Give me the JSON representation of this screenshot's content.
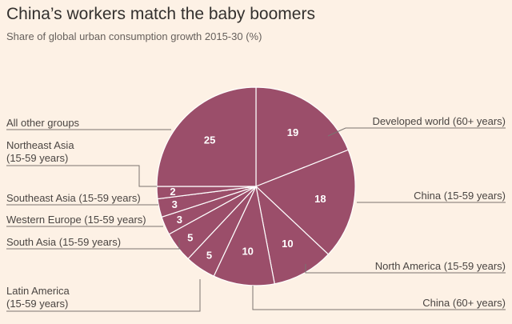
{
  "header": {
    "title": "China’s workers match the baby boomers",
    "subtitle": "Share of global urban consumption growth 2015-30 (%)"
  },
  "colors": {
    "slice": "#9b4e6a",
    "divider": "#ffffff",
    "background": "#fdf1e5"
  },
  "chart_data": {
    "type": "pie",
    "title": "China’s workers match the baby boomers",
    "subtitle": "Share of global urban consumption growth 2015-30 (%)",
    "unit": "%",
    "slices": [
      {
        "label": [
          "Developed world (60+ years)"
        ],
        "value": 19
      },
      {
        "label": [
          "China (15-59 years)"
        ],
        "value": 18
      },
      {
        "label": [
          "North America (15-59 years)"
        ],
        "value": 10
      },
      {
        "label": [
          "China (60+ years)"
        ],
        "value": 10
      },
      {
        "label": [
          "Latin America",
          "(15-59 years)"
        ],
        "value": 5
      },
      {
        "label": [
          "South Asia (15-59 years)"
        ],
        "value": 5
      },
      {
        "label": [
          "Western Europe (15-59 years)"
        ],
        "value": 3
      },
      {
        "label": [
          "Southeast Asia (15-59 years)"
        ],
        "value": 3
      },
      {
        "label": [
          "Northeast Asia",
          "(15-59 years)"
        ],
        "value": 2
      },
      {
        "label": [
          "All other groups"
        ],
        "value": 25
      }
    ]
  }
}
